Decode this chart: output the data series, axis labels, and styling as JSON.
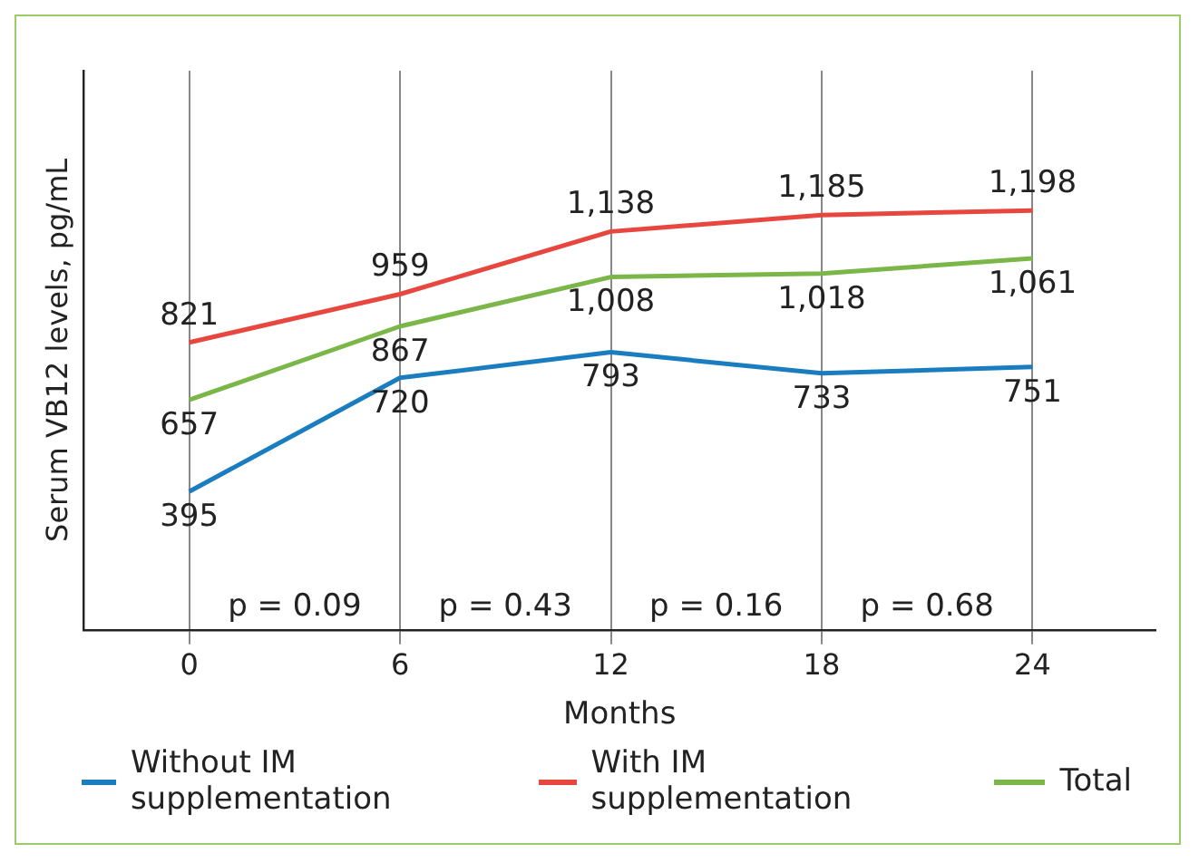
{
  "chart_data": {
    "type": "line",
    "xlabel": "Months",
    "ylabel": "Serum VB12 levels, pg/mL",
    "x": [
      0,
      6,
      12,
      18,
      24
    ],
    "xlim": [
      -3,
      27.5
    ],
    "xticks": [
      0,
      6,
      12,
      18,
      24
    ],
    "series": [
      {
        "name": "Without IM supplementation",
        "color": "#1a7dc0",
        "values": [
          395,
          720,
          793,
          733,
          751
        ],
        "value_labels": [
          "395",
          "720",
          "793",
          "733",
          "751"
        ]
      },
      {
        "name": "With IM supplementation",
        "color": "#e8473f",
        "values": [
          821,
          959,
          1138,
          1185,
          1198
        ],
        "value_labels": [
          "821",
          "959",
          "1,138",
          "1,185",
          "1,198"
        ]
      },
      {
        "name": "Total",
        "color": "#7ab648",
        "values": [
          657,
          867,
          1008,
          1018,
          1061
        ],
        "value_labels": [
          "657",
          "867",
          "1,008",
          "1,018",
          "1,061"
        ]
      }
    ],
    "grid": "x",
    "legend": "bottom",
    "marker": "none",
    "line_style": "solid",
    "tick_labels": "x",
    "annotations": [
      "p = 0.09",
      "p = 0.43",
      "p = 0.16",
      "p = 0.68"
    ]
  }
}
